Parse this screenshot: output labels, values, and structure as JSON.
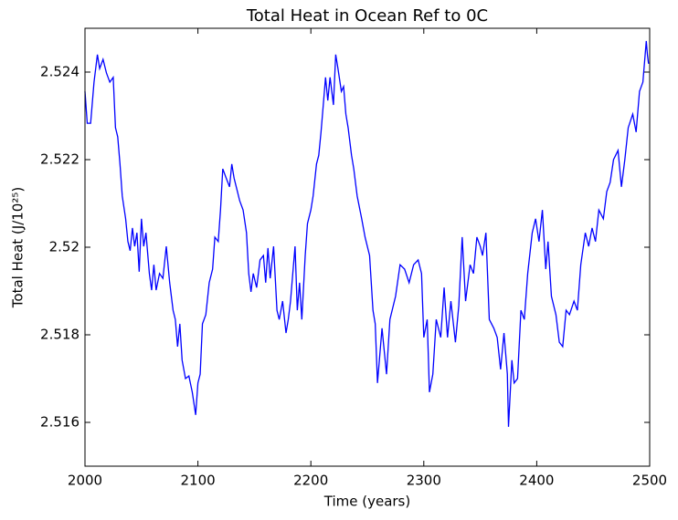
{
  "chart_data": {
    "type": "line",
    "title": "Total Heat in Ocean Ref to 0C",
    "xlabel": "Time (years)",
    "ylabel": "Total Heat (J/10²⁵)",
    "xlim": [
      2000,
      2500
    ],
    "xticks": [
      2000,
      2100,
      2200,
      2300,
      2400,
      2500
    ],
    "ylim": [
      2.515,
      2.525
    ],
    "yticks": [
      2.516,
      2.518,
      2.52,
      2.522,
      2.524
    ],
    "series": [
      {
        "color": "#0000ff",
        "x": [
          2000,
          2002,
          2005,
          2008,
          2011,
          2013,
          2016,
          2019,
          2022,
          2025,
          2027,
          2029,
          2031,
          2033,
          2036,
          2038,
          2040,
          2042,
          2044,
          2046,
          2048,
          2050,
          2052,
          2054,
          2057,
          2059,
          2061,
          2063,
          2066,
          2069,
          2072,
          2075,
          2078,
          2080,
          2082,
          2084,
          2086,
          2089,
          2092,
          2095,
          2098,
          2100,
          2102,
          2104,
          2107,
          2110,
          2113,
          2115,
          2118,
          2120,
          2122,
          2125,
          2128,
          2130,
          2132,
          2135,
          2137,
          2140,
          2143,
          2145,
          2147,
          2149,
          2152,
          2155,
          2158,
          2160,
          2162,
          2164,
          2167,
          2170,
          2172,
          2175,
          2178,
          2180,
          2182,
          2184,
          2186,
          2188,
          2190,
          2192,
          2195,
          2197,
          2200,
          2202,
          2205,
          2207,
          2209,
          2211,
          2213,
          2215,
          2217,
          2220,
          2222,
          2224,
          2227,
          2229,
          2231,
          2233,
          2236,
          2238,
          2241,
          2245,
          2248,
          2252,
          2255,
          2257,
          2259,
          2263,
          2267,
          2270,
          2275,
          2279,
          2283,
          2287,
          2291,
          2295,
          2298,
          2300,
          2303,
          2305,
          2308,
          2311,
          2315,
          2318,
          2321,
          2324,
          2328,
          2331,
          2334,
          2337,
          2341,
          2344,
          2347,
          2350,
          2352,
          2355,
          2358,
          2362,
          2365,
          2368,
          2371,
          2374,
          2375,
          2378,
          2380,
          2383,
          2386,
          2389,
          2392,
          2396,
          2399,
          2402,
          2405,
          2408,
          2410,
          2413,
          2417,
          2420,
          2423,
          2426,
          2429,
          2433,
          2436,
          2439,
          2443,
          2446,
          2449,
          2452,
          2455,
          2459,
          2462,
          2465,
          2468,
          2472,
          2475,
          2478,
          2481,
          2485,
          2488,
          2491,
          2494,
          2497,
          2498,
          2499
        ],
        "values": [
          2.52356,
          2.52283,
          2.52283,
          2.52377,
          2.5244,
          2.52408,
          2.52429,
          2.52398,
          2.52377,
          2.52388,
          2.52273,
          2.52252,
          2.5219,
          2.52117,
          2.52065,
          2.52013,
          2.51992,
          2.52044,
          2.52002,
          2.52033,
          2.51944,
          2.52065,
          2.52002,
          2.52033,
          2.5194,
          2.51902,
          2.5196,
          2.51902,
          2.5194,
          2.51929,
          2.52002,
          2.51919,
          2.51856,
          2.51835,
          2.51773,
          2.51825,
          2.51742,
          2.517,
          2.51706,
          2.51669,
          2.51617,
          2.5169,
          2.5171,
          2.51825,
          2.51846,
          2.51919,
          2.5195,
          2.52023,
          2.52013,
          2.52085,
          2.52179,
          2.52158,
          2.52138,
          2.5219,
          2.52158,
          2.52127,
          2.52106,
          2.52085,
          2.52033,
          2.5194,
          2.51898,
          2.5194,
          2.51908,
          2.51971,
          2.51981,
          2.51919,
          2.51998,
          2.51929,
          2.52002,
          2.51856,
          2.51835,
          2.51877,
          2.51804,
          2.51835,
          2.51877,
          2.5194,
          2.52002,
          2.51856,
          2.51919,
          2.51835,
          2.51981,
          2.52054,
          2.52085,
          2.52117,
          2.5219,
          2.5221,
          2.52263,
          2.52325,
          2.52388,
          2.52335,
          2.52388,
          2.52325,
          2.5244,
          2.52408,
          2.52356,
          2.52367,
          2.52304,
          2.52273,
          2.5221,
          2.52179,
          2.52117,
          2.52065,
          2.52023,
          2.51981,
          2.51856,
          2.51825,
          2.5169,
          2.51815,
          2.5171,
          2.51835,
          2.51888,
          2.5196,
          2.5195,
          2.51919,
          2.5196,
          2.51971,
          2.5194,
          2.51794,
          2.51835,
          2.51669,
          2.5171,
          2.51835,
          2.51794,
          2.51908,
          2.51794,
          2.51877,
          2.51783,
          2.51867,
          2.52023,
          2.51877,
          2.5196,
          2.5194,
          2.52023,
          2.52002,
          2.51981,
          2.52033,
          2.51835,
          2.51815,
          2.51794,
          2.51721,
          2.51804,
          2.5171,
          2.5159,
          2.51742,
          2.5169,
          2.517,
          2.51856,
          2.51835,
          2.5194,
          2.52033,
          2.52065,
          2.52013,
          2.52085,
          2.5195,
          2.52013,
          2.51888,
          2.51846,
          2.51783,
          2.51773,
          2.51856,
          2.51846,
          2.51877,
          2.51856,
          2.5196,
          2.52033,
          2.52002,
          2.52044,
          2.52013,
          2.52085,
          2.52065,
          2.52127,
          2.52148,
          2.522,
          2.52221,
          2.52138,
          2.522,
          2.52273,
          2.52304,
          2.52263,
          2.52356,
          2.52377,
          2.52471,
          2.5244,
          2.52419
        ]
      }
    ]
  }
}
